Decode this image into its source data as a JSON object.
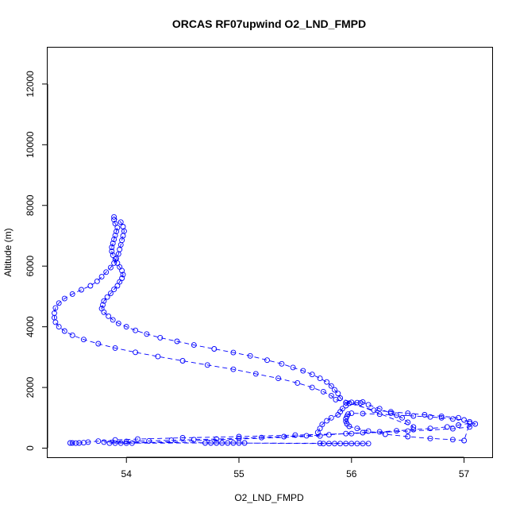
{
  "chart_data": {
    "type": "scatter",
    "title": "ORCAS RF07upwind O2_LND_FMPD",
    "xlabel": "O2_LND_FMPD",
    "ylabel": "Altitude (m)",
    "xlim": [
      53.3,
      57.25
    ],
    "ylim": [
      -300,
      13200
    ],
    "xticks": [
      54,
      55,
      56,
      57
    ],
    "yticks": [
      0,
      2000,
      4000,
      6000,
      8000,
      10000,
      12000
    ],
    "grid": false,
    "color": "#0000ff",
    "marker": "open-circle",
    "series": [
      {
        "name": "",
        "points": [
          [
            53.5,
            170
          ],
          [
            53.52,
            170
          ],
          [
            53.55,
            165
          ],
          [
            53.58,
            170
          ],
          [
            53.62,
            180
          ],
          [
            53.66,
            200
          ],
          [
            53.75,
            230
          ],
          [
            53.9,
            270
          ],
          [
            54.1,
            300
          ],
          [
            54.5,
            340
          ],
          [
            55.0,
            380
          ],
          [
            55.5,
            430
          ],
          [
            56.0,
            480
          ],
          [
            56.5,
            560
          ],
          [
            56.9,
            640
          ],
          [
            57.05,
            700
          ],
          [
            57.1,
            800
          ],
          [
            57.05,
            870
          ],
          [
            57.0,
            930
          ],
          [
            56.9,
            960
          ],
          [
            56.8,
            1000
          ],
          [
            56.7,
            1030
          ],
          [
            56.55,
            1060
          ],
          [
            56.4,
            1090
          ],
          [
            56.25,
            1120
          ],
          [
            56.1,
            1140
          ],
          [
            56.0,
            1150
          ],
          [
            55.97,
            1120
          ],
          [
            55.96,
            1050
          ],
          [
            55.95,
            970
          ],
          [
            55.95,
            880
          ],
          [
            55.96,
            800
          ],
          [
            55.98,
            720
          ],
          [
            56.05,
            650
          ],
          [
            56.15,
            560
          ],
          [
            56.3,
            460
          ],
          [
            56.5,
            380
          ],
          [
            56.7,
            320
          ],
          [
            56.9,
            280
          ],
          [
            57.0,
            250
          ],
          [
            57.05,
            820
          ],
          [
            56.95,
            760
          ],
          [
            56.85,
            700
          ],
          [
            56.7,
            650
          ],
          [
            56.55,
            610
          ],
          [
            56.4,
            570
          ],
          [
            56.25,
            540
          ],
          [
            56.1,
            510
          ],
          [
            55.95,
            480
          ],
          [
            55.8,
            440
          ],
          [
            55.6,
            410
          ],
          [
            55.4,
            380
          ],
          [
            55.2,
            350
          ],
          [
            55.0,
            320
          ],
          [
            54.8,
            300
          ],
          [
            54.6,
            280
          ],
          [
            54.4,
            260
          ],
          [
            54.2,
            240
          ],
          [
            54.0,
            220
          ],
          [
            53.8,
            200
          ],
          [
            55.75,
            150
          ],
          [
            55.8,
            150
          ],
          [
            55.85,
            150
          ],
          [
            55.9,
            150
          ],
          [
            55.95,
            150
          ],
          [
            56.0,
            150
          ],
          [
            56.05,
            150
          ],
          [
            56.1,
            150
          ],
          [
            56.15,
            150
          ],
          [
            55.72,
            160
          ],
          [
            54.7,
            170
          ],
          [
            54.75,
            170
          ],
          [
            54.8,
            170
          ],
          [
            54.85,
            170
          ],
          [
            54.9,
            170
          ],
          [
            54.95,
            170
          ],
          [
            55.0,
            170
          ],
          [
            55.05,
            170
          ],
          [
            53.85,
            165
          ],
          [
            53.9,
            165
          ],
          [
            53.95,
            165
          ],
          [
            54.0,
            165
          ],
          [
            54.05,
            165
          ],
          [
            55.72,
            400
          ],
          [
            55.7,
            520
          ],
          [
            55.72,
            650
          ],
          [
            55.74,
            780
          ],
          [
            55.78,
            900
          ],
          [
            55.82,
            1000
          ],
          [
            55.88,
            1100
          ],
          [
            55.9,
            1200
          ],
          [
            55.92,
            1300
          ],
          [
            55.95,
            1400
          ],
          [
            55.98,
            1480
          ],
          [
            55.95,
            1500
          ],
          [
            56.0,
            1510
          ],
          [
            56.05,
            1500
          ],
          [
            56.08,
            1490
          ],
          [
            56.1,
            1520
          ],
          [
            56.15,
            1430
          ],
          [
            56.25,
            1300
          ],
          [
            56.35,
            1150
          ],
          [
            56.45,
            1000
          ],
          [
            56.5,
            850
          ],
          [
            56.55,
            700
          ],
          [
            55.9,
            1650
          ],
          [
            55.88,
            1800
          ],
          [
            55.85,
            1920
          ],
          [
            55.82,
            2050
          ],
          [
            55.78,
            2180
          ],
          [
            55.72,
            2300
          ],
          [
            55.65,
            2430
          ],
          [
            55.57,
            2550
          ],
          [
            55.48,
            2660
          ],
          [
            55.38,
            2780
          ],
          [
            55.25,
            2900
          ],
          [
            55.1,
            3040
          ],
          [
            54.95,
            3150
          ],
          [
            54.78,
            3270
          ],
          [
            54.6,
            3400
          ],
          [
            54.45,
            3520
          ],
          [
            54.3,
            3640
          ],
          [
            54.18,
            3760
          ],
          [
            54.08,
            3880
          ],
          [
            54.0,
            4000
          ],
          [
            53.93,
            4110
          ],
          [
            53.88,
            4230
          ],
          [
            53.84,
            4350
          ],
          [
            53.8,
            4480
          ],
          [
            53.78,
            4600
          ],
          [
            53.79,
            4720
          ],
          [
            53.8,
            4850
          ],
          [
            53.83,
            4980
          ],
          [
            53.86,
            5100
          ],
          [
            53.89,
            5230
          ],
          [
            53.92,
            5350
          ],
          [
            53.94,
            5480
          ],
          [
            53.96,
            5600
          ],
          [
            53.97,
            5720
          ],
          [
            53.96,
            5850
          ],
          [
            53.94,
            5970
          ],
          [
            53.92,
            6100
          ],
          [
            53.9,
            6230
          ],
          [
            53.88,
            6360
          ],
          [
            53.87,
            6490
          ],
          [
            53.87,
            6620
          ],
          [
            53.88,
            6750
          ],
          [
            53.89,
            6880
          ],
          [
            53.9,
            7010
          ],
          [
            53.91,
            7140
          ],
          [
            53.92,
            7270
          ],
          [
            53.9,
            7400
          ],
          [
            53.89,
            7530
          ],
          [
            53.89,
            7620
          ],
          [
            53.95,
            7450
          ],
          [
            53.97,
            7300
          ],
          [
            53.98,
            7150
          ],
          [
            53.97,
            7000
          ],
          [
            53.96,
            6850
          ],
          [
            53.95,
            6700
          ],
          [
            53.94,
            6550
          ],
          [
            53.93,
            6400
          ],
          [
            53.91,
            6250
          ],
          [
            53.89,
            6100
          ],
          [
            53.86,
            5950
          ],
          [
            53.82,
            5800
          ],
          [
            53.78,
            5650
          ],
          [
            53.74,
            5500
          ],
          [
            53.68,
            5350
          ],
          [
            53.6,
            5220
          ],
          [
            53.52,
            5080
          ],
          [
            53.45,
            4930
          ],
          [
            53.4,
            4780
          ],
          [
            53.37,
            4620
          ],
          [
            53.36,
            4450
          ],
          [
            53.36,
            4300
          ],
          [
            53.37,
            4150
          ],
          [
            53.4,
            4000
          ],
          [
            53.45,
            3860
          ],
          [
            53.52,
            3720
          ],
          [
            53.62,
            3580
          ],
          [
            53.75,
            3440
          ],
          [
            53.9,
            3300
          ],
          [
            54.08,
            3160
          ],
          [
            54.28,
            3020
          ],
          [
            54.5,
            2880
          ],
          [
            54.72,
            2740
          ],
          [
            54.95,
            2600
          ],
          [
            55.15,
            2450
          ],
          [
            55.35,
            2300
          ],
          [
            55.52,
            2150
          ],
          [
            55.65,
            2000
          ],
          [
            55.75,
            1860
          ],
          [
            55.82,
            1730
          ],
          [
            55.86,
            1600
          ],
          [
            56.2,
            1250
          ],
          [
            56.35,
            1200
          ],
          [
            56.5,
            1150
          ],
          [
            56.65,
            1100
          ],
          [
            56.8,
            1050
          ],
          [
            56.95,
            1000
          ]
        ]
      }
    ]
  }
}
